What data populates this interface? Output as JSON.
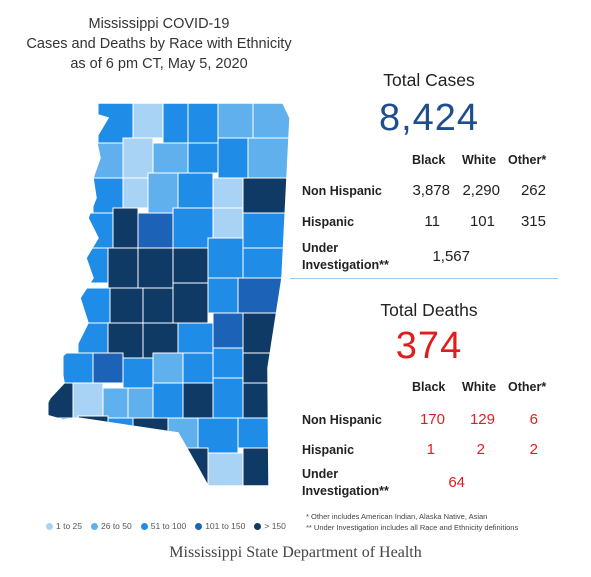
{
  "title_lines": [
    "Mississippi COVID-19",
    "Cases and Deaths by Race with Ethnicity",
    "as of 6 pm CT, May 5, 2020"
  ],
  "colors": {
    "c1": "#a8d3f5",
    "c2": "#5fb0ed",
    "c3": "#1f8ce8",
    "c4": "#1c63b7",
    "c5": "#0f3a66",
    "gray": "#c7c7c7",
    "red": "#e01d1d",
    "blue": "#1f4e8c"
  },
  "legend": [
    {
      "label": "1 to 25",
      "color": "#a8d3f5"
    },
    {
      "label": "26 to 50",
      "color": "#5fb0ed"
    },
    {
      "label": "51 to 100",
      "color": "#1f8ce8"
    },
    {
      "label": "101 to 150",
      "color": "#1c63b7"
    },
    {
      "label": "> 150",
      "color": "#0f3a66"
    }
  ],
  "cases": {
    "title": "Total Cases",
    "total": "8,424",
    "columns": [
      "Black",
      "White",
      "Other*"
    ],
    "rows": [
      {
        "label": "Non Hispanic",
        "values": [
          "3,878",
          "2,290",
          "262"
        ]
      },
      {
        "label": "Hispanic",
        "values": [
          "11",
          "101",
          "315"
        ]
      }
    ],
    "under_label": [
      "Under",
      "Investigation**"
    ],
    "under_value": "1,567"
  },
  "deaths": {
    "title": "Total Deaths",
    "total": "374",
    "columns": [
      "Black",
      "White",
      "Other*"
    ],
    "rows": [
      {
        "label": "Non Hispanic",
        "values": [
          "170",
          "129",
          "6"
        ]
      },
      {
        "label": "Hispanic",
        "values": [
          "1",
          "2",
          "2"
        ]
      }
    ],
    "under_label": [
      "Under",
      "Investigation**"
    ],
    "under_value": "64"
  },
  "notes": [
    "* Other includes American Indian, Alaska Native, Asian",
    "** Under Investigation includes all Race and Ethnicity definitions"
  ],
  "footer": "Mississippi State Department of Health"
}
